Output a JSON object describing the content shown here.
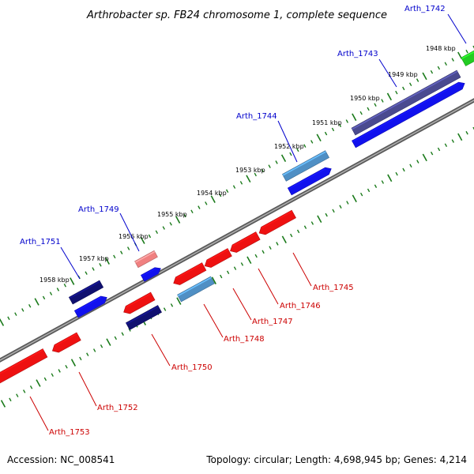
{
  "title": "Arthrobacter sp. FB24 chromosome 1, complete sequence",
  "footer": {
    "accession": "Accession: NC_008541",
    "summary": "Topology: circular; Length: 4,698,945 bp; Genes: 4,214"
  },
  "colors": {
    "forward_label": "#0000cc",
    "reverse_label": "#cc0000",
    "backbone": "#808080",
    "tick": "#1a7a1a",
    "gene_red": "#ee1111",
    "gene_pink": "#f08080",
    "gene_blue": "#1111ee",
    "gene_navy": "#101070",
    "gene_purple": "#4a4a90",
    "gene_steel": "#4f8fc4",
    "gene_green": "#22cc22"
  },
  "tick_labels": [
    "1948 kbp",
    "1949 kbp",
    "1950 kbp",
    "1951 kbp",
    "1952 kbp",
    "1953 kbp",
    "1954 kbp",
    "1955 kbp",
    "1956 kbp",
    "1957 kbp",
    "1958 kbp"
  ],
  "gene_labels": {
    "forward": [
      "Arth_1742",
      "Arth_1743",
      "Arth_1744",
      "Arth_1749",
      "Arth_1751"
    ],
    "reverse": [
      "Arth_1745",
      "Arth_1746",
      "Arth_1747",
      "Arth_1748",
      "Arth_1750",
      "Arth_1752",
      "Arth_1753"
    ]
  }
}
